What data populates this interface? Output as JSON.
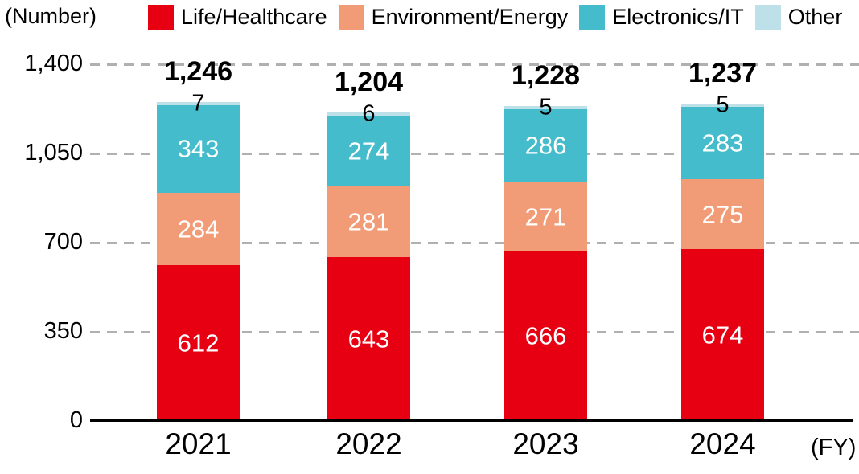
{
  "chart_data": {
    "type": "bar",
    "stacked": true,
    "unit": "(Number)",
    "x_axis_label": "(FY)",
    "categories": [
      "2021",
      "2022",
      "2023",
      "2024"
    ],
    "series": [
      {
        "name": "Life/Healthcare",
        "color": "#E60012",
        "values": [
          612,
          643,
          666,
          674
        ]
      },
      {
        "name": "Environment/Energy",
        "color": "#F29C77",
        "values": [
          284,
          281,
          271,
          275
        ]
      },
      {
        "name": "Electronics/IT",
        "color": "#45BCCB",
        "values": [
          343,
          274,
          286,
          283
        ]
      },
      {
        "name": "Other",
        "color": "#BEE0E8",
        "values": [
          7,
          6,
          5,
          5
        ]
      }
    ],
    "totals": [
      "1,246",
      "1,204",
      "1,228",
      "1,237"
    ],
    "y_ticks": [
      "0",
      "350",
      "700",
      "1,050",
      "1,400"
    ],
    "ylim": [
      0,
      1400
    ],
    "grid": "dashed horizontal",
    "legend_position": "top",
    "colors": {
      "grid": "#b0b0b0",
      "axis": "#000000",
      "segment_text": "#ffffff",
      "text": "#000000"
    }
  }
}
